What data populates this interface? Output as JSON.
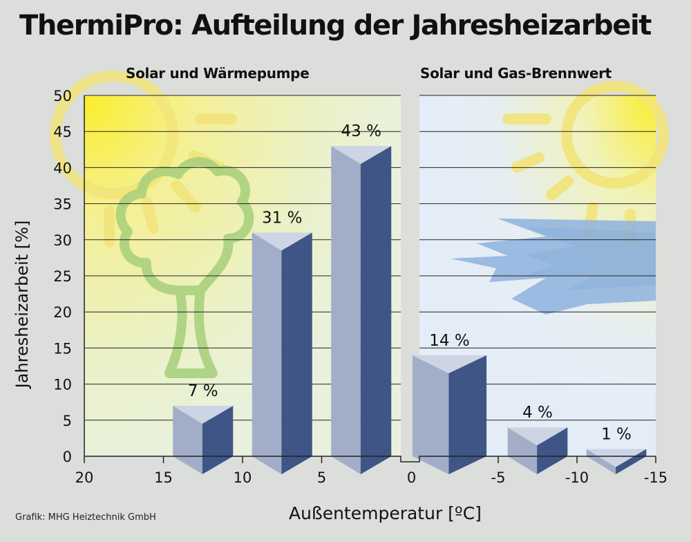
{
  "title": "ThermiPro: Aufteilung der Jahresheizarbeit",
  "panels": [
    {
      "title": "Solar und Wärmepumpe"
    },
    {
      "title": "Solar und Gas-Brennwert"
    }
  ],
  "source": "Grafik: MHG Heiztechnik GmbH",
  "colors": {
    "bar_front": "#a2aec8",
    "bar_side": "#3e5586",
    "bar_top": "#cdd5e4",
    "sun": "#f5e85a",
    "tree": "#a6cf7a",
    "wind": "#8fb3e0"
  },
  "chart_data": {
    "type": "bar",
    "title": "ThermiPro: Aufteilung der Jahresheizarbeit",
    "xlabel": "Außentemperatur [ºC]",
    "ylabel": "Jahresheizarbeit [%]",
    "ylim": [
      0,
      50
    ],
    "yticks": [
      "0",
      "5",
      "10",
      "15",
      "20",
      "25",
      "30",
      "35",
      "40",
      "45",
      "50"
    ],
    "xticks_left": [
      "20",
      "15",
      "10",
      "5",
      "0"
    ],
    "xticks_right": [
      "-5",
      "-10",
      "-15"
    ],
    "grid": true,
    "series": [
      {
        "name": "Solar und Wärmepumpe",
        "x_ranges": [
          [
            15,
            10
          ],
          [
            10,
            5
          ],
          [
            5,
            0
          ]
        ],
        "values": [
          7,
          31,
          43
        ],
        "labels": [
          "7 %",
          "31 %",
          "43 %"
        ]
      },
      {
        "name": "Solar und Gas-Brennwert",
        "x_ranges": [
          [
            0,
            -5
          ],
          [
            -5,
            -10
          ],
          [
            -10,
            -15
          ]
        ],
        "values": [
          14,
          4,
          1
        ],
        "labels": [
          "14 %",
          "4 %",
          "1 %"
        ]
      }
    ]
  }
}
